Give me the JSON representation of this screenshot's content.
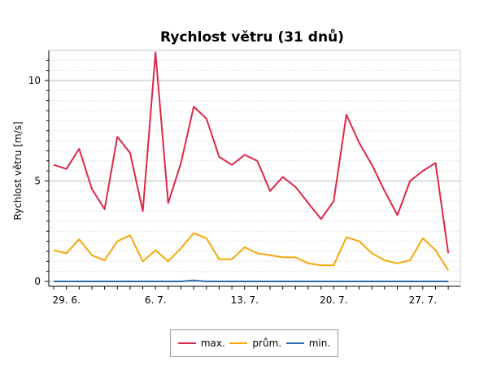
{
  "chart_data": {
    "type": "line",
    "title": "Rychlost větru (31 dnů)",
    "xlabel": "",
    "ylabel": "Rychlost větru [m/s]",
    "ylim": [
      0,
      11.5
    ],
    "yticks": [
      0,
      5,
      10
    ],
    "grid": true,
    "legend_position": "bottom",
    "x": [
      "28. 6.",
      "29. 6.",
      "30. 6.",
      "1. 7.",
      "2. 7.",
      "3. 7.",
      "4. 7.",
      "5. 7.",
      "6. 7.",
      "7. 7.",
      "8. 7.",
      "9. 7.",
      "10. 7.",
      "11. 7.",
      "12. 7.",
      "13. 7.",
      "14. 7.",
      "15. 7.",
      "16. 7.",
      "17. 7.",
      "18. 7.",
      "19. 7.",
      "20. 7.",
      "21. 7.",
      "22. 7.",
      "23. 7.",
      "24. 7.",
      "25. 7.",
      "26. 7.",
      "27. 7.",
      "28. 7.",
      "29. 7."
    ],
    "x_tick_labels": [
      {
        "index": 1,
        "label": "29. 6."
      },
      {
        "index": 8,
        "label": "6. 7."
      },
      {
        "index": 15,
        "label": "13. 7."
      },
      {
        "index": 22,
        "label": "20. 7."
      },
      {
        "index": 29,
        "label": "27. 7."
      }
    ],
    "series": [
      {
        "name": "max.",
        "color": "#dc2847",
        "values": [
          5.8,
          5.6,
          6.6,
          4.6,
          3.6,
          7.2,
          6.4,
          3.5,
          11.4,
          3.9,
          5.9,
          8.7,
          8.1,
          6.2,
          5.8,
          6.3,
          6.0,
          4.5,
          5.2,
          4.7,
          3.9,
          3.1,
          4.0,
          8.3,
          6.9,
          5.8,
          4.5,
          3.3,
          5.0,
          5.5,
          5.9,
          1.4
        ]
      },
      {
        "name": "prům.",
        "color": "#f5a80a",
        "values": [
          1.55,
          1.4,
          2.1,
          1.3,
          1.05,
          2.0,
          2.3,
          1.0,
          1.55,
          1.0,
          1.65,
          2.4,
          2.15,
          1.1,
          1.1,
          1.7,
          1.4,
          1.3,
          1.2,
          1.2,
          0.9,
          0.8,
          0.8,
          2.2,
          2.0,
          1.4,
          1.05,
          0.9,
          1.05,
          2.15,
          1.55,
          0.55
        ]
      },
      {
        "name": "min.",
        "color": "#2a6db0",
        "values": [
          0,
          0,
          0,
          0,
          0,
          0,
          0,
          0,
          0,
          0,
          0,
          0.05,
          0,
          0,
          0,
          0,
          0,
          0,
          0,
          0,
          0,
          0,
          0,
          0,
          0,
          0,
          0,
          0,
          0,
          0,
          0,
          0
        ]
      }
    ]
  }
}
